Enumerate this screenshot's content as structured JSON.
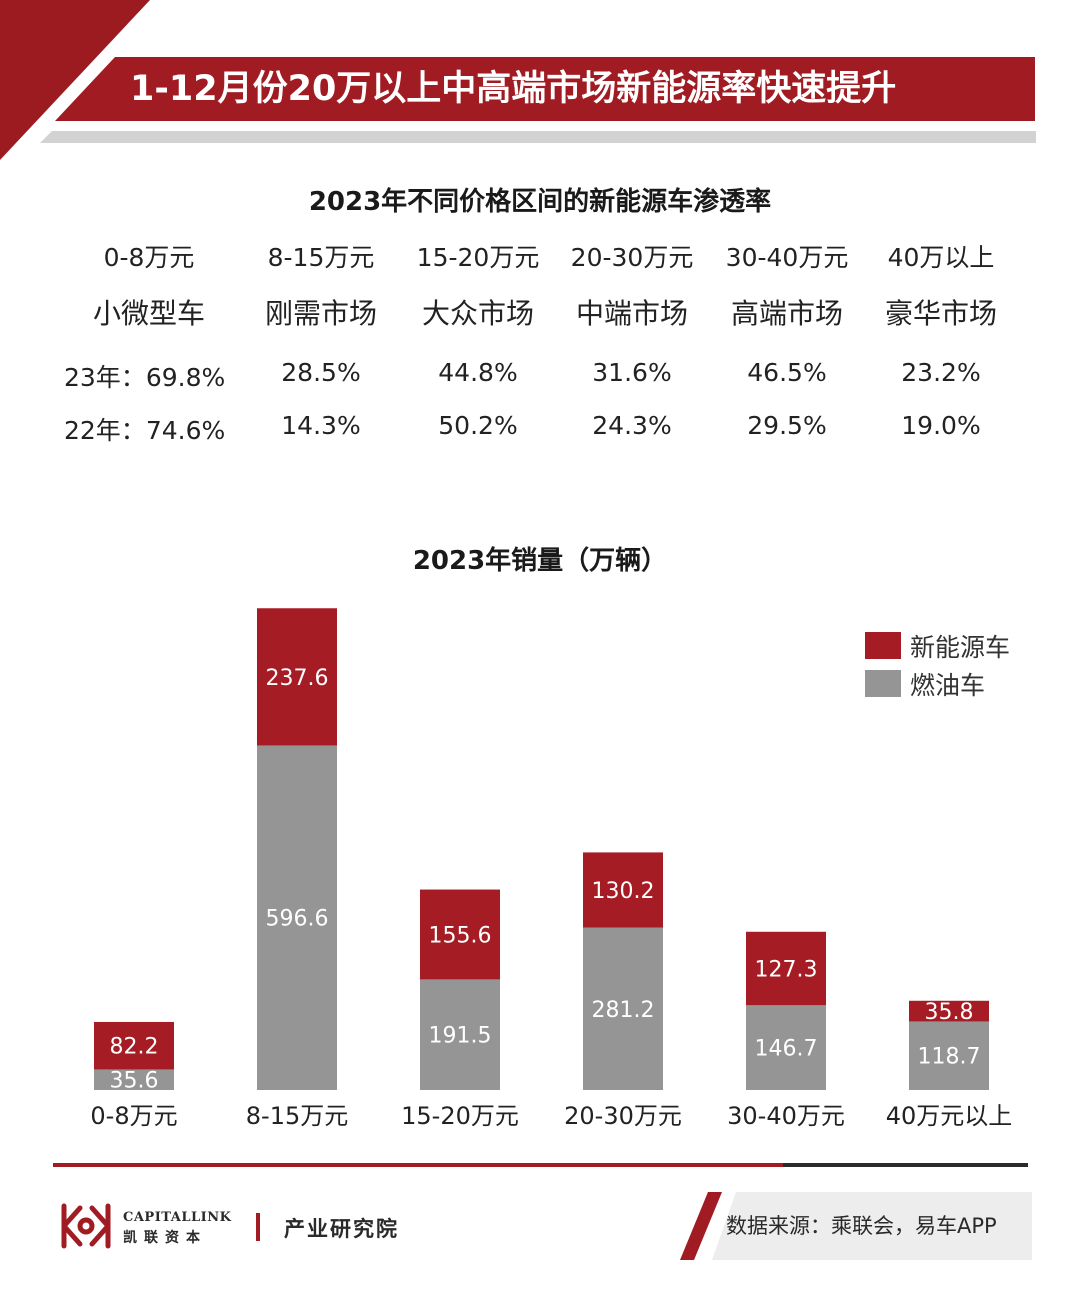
{
  "header": {
    "title": "1-12月份20万以上中高端市场新能源率快速提升"
  },
  "penetration": {
    "title": "2023年不同价格区间的新能源车渗透率",
    "ranges": [
      "0-8万元",
      "8-15万元",
      "15-20万元",
      "20-30万元",
      "30-40万元",
      "40万以上"
    ],
    "segments": [
      "小微型车",
      "刚需市场",
      "大众市场",
      "中端市场",
      "高端市场",
      "豪华市场"
    ],
    "rows": [
      {
        "label": "23年：",
        "values": [
          "69.8%",
          "28.5%",
          "44.8%",
          "31.6%",
          "46.5%",
          "23.2%"
        ]
      },
      {
        "label": "22年：",
        "values": [
          "74.6%",
          "14.3%",
          "50.2%",
          "24.3%",
          "29.5%",
          "19.0%"
        ]
      }
    ]
  },
  "chart_data": {
    "type": "bar",
    "stacked": true,
    "title": "2023年销量（万辆）",
    "categories": [
      "0-8万元",
      "8-15万元",
      "15-20万元",
      "20-30万元",
      "30-40万元",
      "40万元以上"
    ],
    "series": [
      {
        "name": "燃油车",
        "color": "#959595",
        "values": [
          35.6,
          596.6,
          191.5,
          281.2,
          146.7,
          118.7
        ]
      },
      {
        "name": "新能源车",
        "color": "#a51c24",
        "values": [
          82.2,
          237.6,
          155.6,
          130.2,
          127.3,
          35.8
        ]
      }
    ],
    "legend_position": "top-right",
    "grid": false
  },
  "footer": {
    "logo_en": "CAPITALLINK",
    "logo_cn": "凯联资本",
    "institute": "产业研究院",
    "source": "数据来源：乘联会，易车APP"
  }
}
